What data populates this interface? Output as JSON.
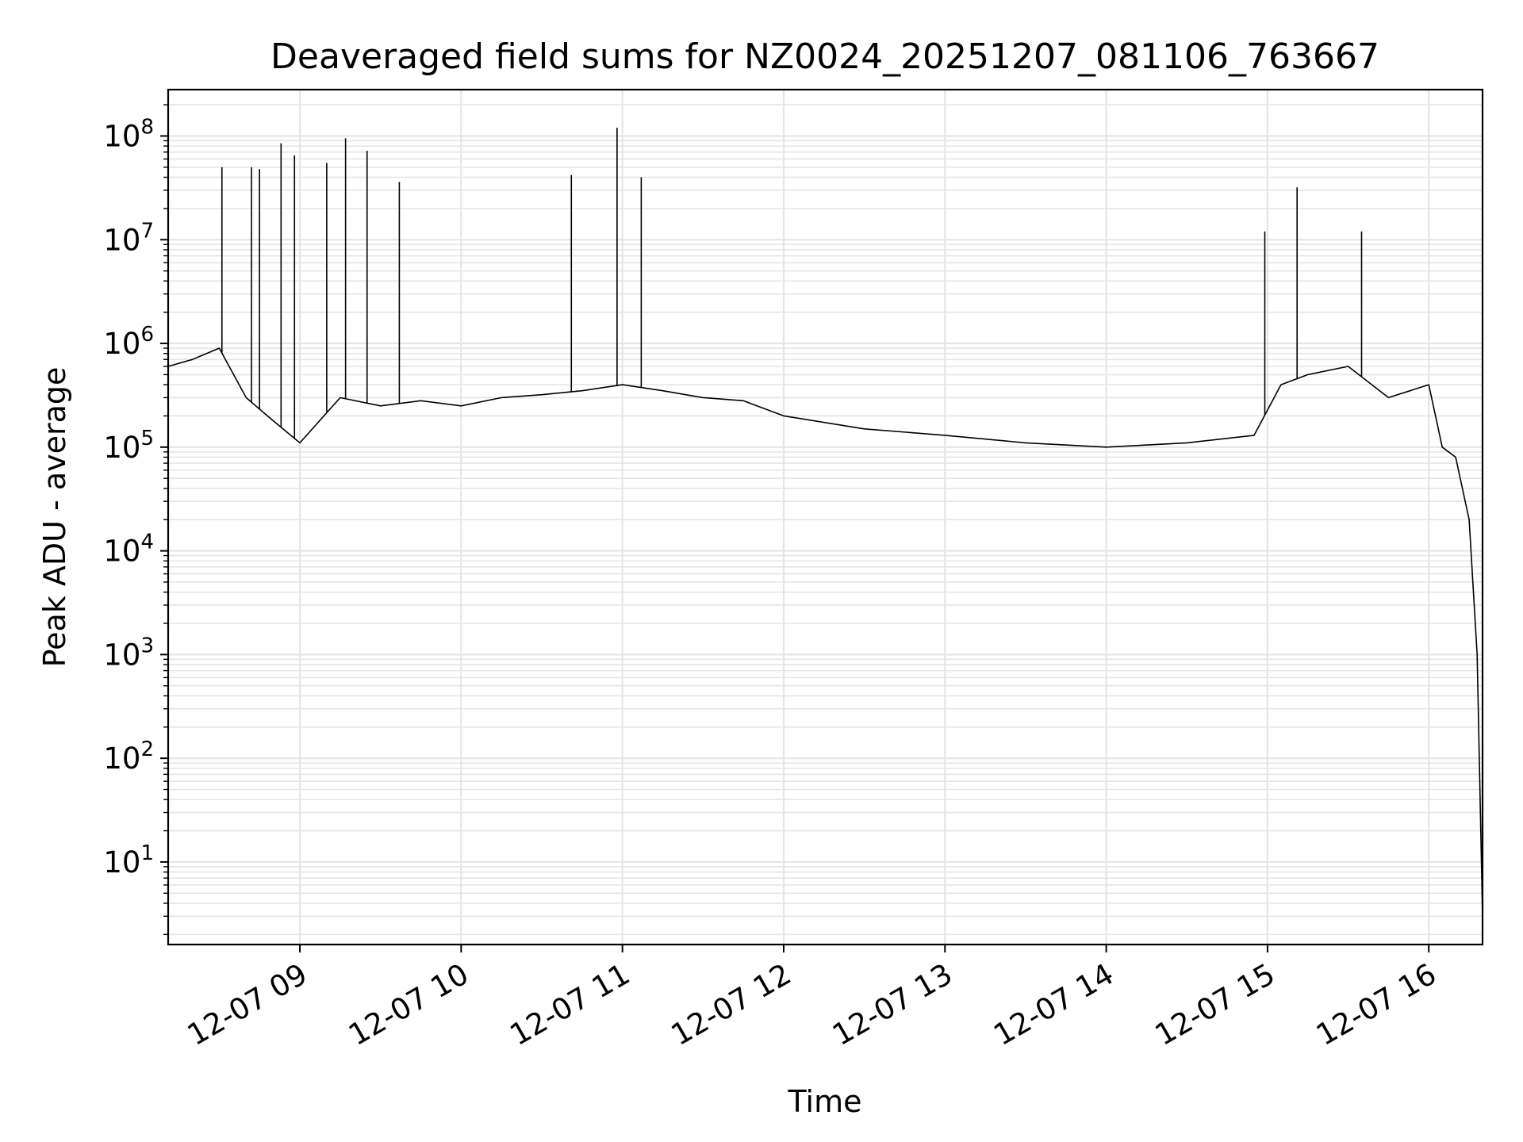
{
  "chart_data": {
    "type": "line",
    "title": "Deaveraged field sums for NZ0024_20251207_081106_763667",
    "xlabel": "Time",
    "ylabel": "Peak ADU - average",
    "yscale": "log",
    "ylim": [
      1.6,
      280000000
    ],
    "xlim": [
      "2025-12-07 08:11",
      "2025-12-07 16:20"
    ],
    "grid": true,
    "line_color": "#000000",
    "grid_color": "#e5e5e5",
    "xticks": [
      {
        "value": "2025-12-07 09:00",
        "label": "12-07 09"
      },
      {
        "value": "2025-12-07 10:00",
        "label": "12-07 10"
      },
      {
        "value": "2025-12-07 11:00",
        "label": "12-07 11"
      },
      {
        "value": "2025-12-07 12:00",
        "label": "12-07 12"
      },
      {
        "value": "2025-12-07 13:00",
        "label": "12-07 13"
      },
      {
        "value": "2025-12-07 14:00",
        "label": "12-07 14"
      },
      {
        "value": "2025-12-07 15:00",
        "label": "12-07 15"
      },
      {
        "value": "2025-12-07 16:00",
        "label": "12-07 16"
      }
    ],
    "yticks": [
      {
        "value": 10,
        "base": "10",
        "exp": "1"
      },
      {
        "value": 100,
        "base": "10",
        "exp": "2"
      },
      {
        "value": 1000,
        "base": "10",
        "exp": "3"
      },
      {
        "value": 10000,
        "base": "10",
        "exp": "4"
      },
      {
        "value": 100000,
        "base": "10",
        "exp": "5"
      },
      {
        "value": 1000000,
        "base": "10",
        "exp": "6"
      },
      {
        "value": 10000000,
        "base": "10",
        "exp": "7"
      },
      {
        "value": 100000000,
        "base": "10",
        "exp": "8"
      }
    ],
    "series": [
      {
        "x": [
          "2025-12-07 08:11",
          "2025-12-07 08:20",
          "2025-12-07 08:30",
          "2025-12-07 08:40",
          "2025-12-07 08:50",
          "2025-12-07 09:00",
          "2025-12-07 09:15",
          "2025-12-07 09:30",
          "2025-12-07 09:45",
          "2025-12-07 10:00",
          "2025-12-07 10:15",
          "2025-12-07 10:30",
          "2025-12-07 10:45",
          "2025-12-07 11:00",
          "2025-12-07 11:15",
          "2025-12-07 11:30",
          "2025-12-07 11:45",
          "2025-12-07 12:00",
          "2025-12-07 12:30",
          "2025-12-07 13:00",
          "2025-12-07 13:30",
          "2025-12-07 14:00",
          "2025-12-07 14:30",
          "2025-12-07 14:55",
          "2025-12-07 15:05",
          "2025-12-07 15:15",
          "2025-12-07 15:30",
          "2025-12-07 15:45",
          "2025-12-07 16:00",
          "2025-12-07 16:05",
          "2025-12-07 16:10",
          "2025-12-07 16:15",
          "2025-12-07 16:18",
          "2025-12-07 16:20"
        ],
        "y": [
          600000,
          700000,
          900000,
          300000,
          180000,
          110000,
          300000,
          250000,
          280000,
          250000,
          300000,
          320000,
          350000,
          400000,
          350000,
          300000,
          280000,
          200000,
          150000,
          130000,
          110000,
          100000,
          110000,
          130000,
          400000,
          500000,
          600000,
          300000,
          400000,
          100000,
          80000,
          20000,
          1000,
          3
        ]
      }
    ],
    "spikes": [
      {
        "x": "2025-12-07 08:31",
        "y": 50000000
      },
      {
        "x": "2025-12-07 08:42",
        "y": 50000000
      },
      {
        "x": "2025-12-07 08:45",
        "y": 48000000
      },
      {
        "x": "2025-12-07 08:53",
        "y": 85000000
      },
      {
        "x": "2025-12-07 08:58",
        "y": 65000000
      },
      {
        "x": "2025-12-07 09:10",
        "y": 55000000
      },
      {
        "x": "2025-12-07 09:17",
        "y": 95000000
      },
      {
        "x": "2025-12-07 09:25",
        "y": 72000000
      },
      {
        "x": "2025-12-07 09:37",
        "y": 36000000
      },
      {
        "x": "2025-12-07 10:41",
        "y": 42000000
      },
      {
        "x": "2025-12-07 10:58",
        "y": 120000000
      },
      {
        "x": "2025-12-07 11:07",
        "y": 40000000
      },
      {
        "x": "2025-12-07 14:59",
        "y": 12000000
      },
      {
        "x": "2025-12-07 15:11",
        "y": 32000000
      },
      {
        "x": "2025-12-07 15:35",
        "y": 12000000
      }
    ]
  }
}
